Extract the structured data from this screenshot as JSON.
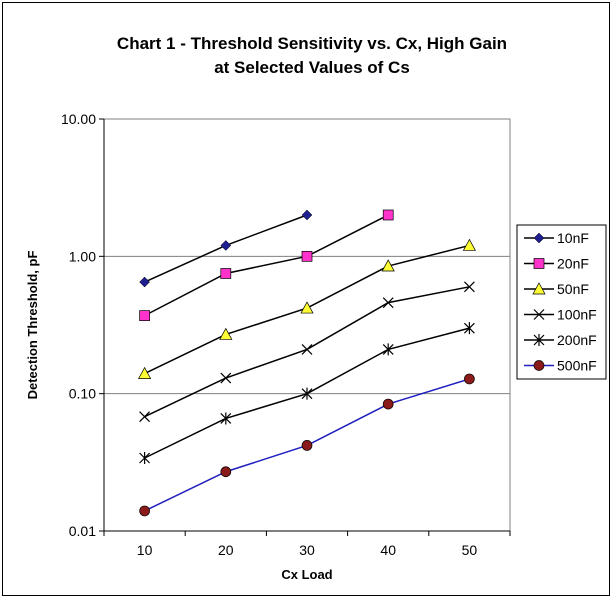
{
  "chart_data": {
    "type": "line",
    "title_lines": [
      "Chart 1 - Threshold Sensitivity vs. Cx, High Gain",
      "at Selected Values of Cs"
    ],
    "xlabel": "Cx Load",
    "ylabel": "Detection Threshold, pF",
    "x_ticks": [
      "10",
      "20",
      "30",
      "40",
      "50"
    ],
    "y_ticks": [
      "10.00",
      "1.00",
      "0.10",
      "0.01"
    ],
    "y_scale": "log",
    "ylim": [
      0.01,
      10
    ],
    "xlim": [
      5,
      55
    ],
    "grid": "horizontal",
    "legend_position": "right",
    "series": [
      {
        "name": "10nF",
        "color": "#1f1f8f",
        "marker": "diamond",
        "x": [
          10,
          20,
          30
        ],
        "values": [
          0.65,
          1.2,
          2.0
        ]
      },
      {
        "name": "20nF",
        "color": "#ff33cc",
        "marker": "square",
        "x": [
          10,
          20,
          30,
          40
        ],
        "values": [
          0.37,
          0.75,
          1.0,
          2.0
        ]
      },
      {
        "name": "50nF",
        "color": "#ffff33",
        "marker": "triangle",
        "x": [
          10,
          20,
          30,
          40,
          50
        ],
        "values": [
          0.14,
          0.27,
          0.42,
          0.85,
          1.2
        ]
      },
      {
        "name": "100nF",
        "color": "#000000",
        "marker": "x",
        "x": [
          10,
          20,
          30,
          40,
          50
        ],
        "values": [
          0.068,
          0.13,
          0.21,
          0.46,
          0.6
        ]
      },
      {
        "name": "200nF",
        "color": "#000000",
        "marker": "star",
        "x": [
          10,
          20,
          30,
          40,
          50
        ],
        "values": [
          0.034,
          0.066,
          0.1,
          0.21,
          0.3
        ]
      },
      {
        "name": "500nF",
        "color": "#1f1fbf",
        "marker": "circle",
        "x": [
          10,
          20,
          30,
          40,
          50
        ],
        "values": [
          0.014,
          0.027,
          0.042,
          0.084,
          0.128
        ]
      }
    ]
  }
}
